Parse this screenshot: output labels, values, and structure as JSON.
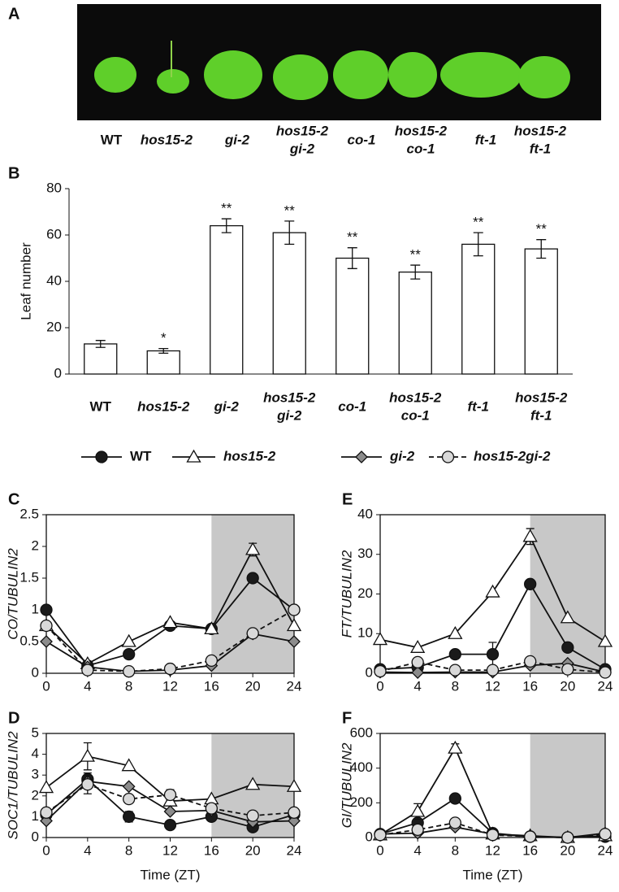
{
  "photo": {
    "panel": "A",
    "labels": [
      [
        "WT"
      ],
      [
        "hos15-2"
      ],
      [
        "gi-2"
      ],
      [
        "hos15-2",
        "gi-2"
      ],
      [
        "co-1"
      ],
      [
        "hos15-2",
        "co-1"
      ],
      [
        "ft-1"
      ],
      [
        "hos15-2",
        "ft-1"
      ]
    ]
  },
  "chart_data": [
    {
      "type": "bar",
      "panel": "B",
      "ylabel": "Leaf number",
      "categories": [
        [
          "WT"
        ],
        [
          "hos15-2"
        ],
        [
          "gi-2"
        ],
        [
          "hos15-2",
          "gi-2"
        ],
        [
          "co-1"
        ],
        [
          "hos15-2",
          "co-1"
        ],
        [
          "ft-1"
        ],
        [
          "hos15-2",
          "ft-1"
        ]
      ],
      "values": [
        13,
        10,
        64,
        61,
        50,
        44,
        56,
        54
      ],
      "errors": [
        1.5,
        1,
        3,
        5,
        4.5,
        3,
        5,
        4
      ],
      "significance": [
        null,
        "*",
        "**",
        "**",
        "**",
        "**",
        "**",
        "**"
      ],
      "color": "#ffffff",
      "ylim": [
        0,
        80
      ],
      "yticks": [
        0,
        20,
        40,
        60,
        80
      ]
    },
    {
      "type": "line",
      "panel": "C",
      "ylabel": "CO/TUBULIN2",
      "x": [
        0,
        4,
        8,
        12,
        16,
        20,
        24
      ],
      "xlim": [
        0,
        24
      ],
      "xticks": [
        0,
        4,
        8,
        12,
        16,
        20,
        24
      ],
      "ylim": [
        0,
        2.5
      ],
      "yticks": [
        0,
        0.5,
        1,
        1.5,
        2,
        2.5
      ],
      "shade": [
        16,
        24
      ],
      "series": [
        {
          "name": "WT",
          "color": "#1a1a1a",
          "marker": "circle",
          "dashed": false,
          "values": [
            1,
            0.12,
            0.3,
            0.75,
            0.7,
            1.5,
            1
          ]
        },
        {
          "name": "hos15-2",
          "color": "#ffffff",
          "marker": "triangle",
          "dashed": false,
          "values": [
            0.75,
            0.15,
            0.5,
            0.8,
            0.7,
            1.95,
            0.75
          ],
          "errors": [
            null,
            null,
            null,
            null,
            null,
            0.1,
            null
          ]
        },
        {
          "name": "gi-2",
          "color": "#8c8c8c",
          "marker": "diamond",
          "dashed": false,
          "values": [
            0.5,
            0.1,
            0.03,
            0.05,
            0.12,
            0.62,
            0.5
          ]
        },
        {
          "name": "hos15-2gi-2",
          "color": "#d9d9d9",
          "marker": "circle",
          "dashed": true,
          "values": [
            0.75,
            0.05,
            0.03,
            0.07,
            0.2,
            0.63,
            1
          ]
        }
      ]
    },
    {
      "type": "line",
      "panel": "E",
      "ylabel": "FT/TUBULIN2",
      "x": [
        0,
        4,
        8,
        12,
        16,
        20,
        24
      ],
      "xlim": [
        0,
        24
      ],
      "xticks": [
        0,
        4,
        8,
        12,
        16,
        20,
        24
      ],
      "ylim": [
        0,
        40
      ],
      "yticks": [
        0,
        10,
        20,
        30,
        40
      ],
      "shade": [
        16,
        24
      ],
      "series": [
        {
          "color": "#1a1a1a",
          "marker": "circle",
          "dashed": false,
          "values": [
            1,
            1.5,
            4.8,
            4.8,
            22.5,
            6.5,
            1
          ],
          "errors": [
            null,
            null,
            null,
            3,
            null,
            null,
            null
          ]
        },
        {
          "color": "#ffffff",
          "marker": "triangle",
          "dashed": false,
          "values": [
            8.5,
            6.5,
            10,
            20.5,
            34.5,
            14,
            8
          ],
          "errors": [
            null,
            null,
            null,
            null,
            2,
            null,
            null
          ]
        },
        {
          "color": "#8c8c8c",
          "marker": "diamond",
          "dashed": false,
          "values": [
            0.3,
            0.2,
            0.3,
            0.3,
            2,
            2.5,
            0.3
          ]
        },
        {
          "color": "#d9d9d9",
          "marker": "circle",
          "dashed": true,
          "values": [
            0.5,
            2.8,
            0.8,
            0.8,
            3,
            1,
            0.2
          ]
        }
      ]
    },
    {
      "type": "line",
      "panel": "D",
      "ylabel": "SOC1/TUBULIN2",
      "xlabel": "Time (ZT)",
      "x": [
        0,
        4,
        8,
        12,
        16,
        20,
        24
      ],
      "xlim": [
        0,
        24
      ],
      "xticks": [
        0,
        4,
        8,
        12,
        16,
        20,
        24
      ],
      "ylim": [
        0,
        5
      ],
      "yticks": [
        0,
        1,
        2,
        3,
        4,
        5
      ],
      "shade": [
        16,
        24
      ],
      "series": [
        {
          "color": "#1a1a1a",
          "marker": "circle",
          "dashed": false,
          "values": [
            1.1,
            2.8,
            1,
            0.6,
            1,
            0.5,
            1.1
          ],
          "errors": [
            null,
            0.3,
            0.25,
            null,
            null,
            null,
            null
          ]
        },
        {
          "color": "#ffffff",
          "marker": "triangle",
          "dashed": false,
          "values": [
            2.4,
            3.9,
            3.45,
            1.75,
            1.85,
            2.55,
            2.45
          ],
          "errors": [
            null,
            0.65,
            null,
            null,
            null,
            null,
            null
          ]
        },
        {
          "color": "#8c8c8c",
          "marker": "diamond",
          "dashed": false,
          "values": [
            0.8,
            2.7,
            2.45,
            1.25,
            1.3,
            0.75,
            0.8
          ]
        },
        {
          "color": "#d9d9d9",
          "marker": "circle",
          "dashed": true,
          "values": [
            1.2,
            2.55,
            1.85,
            2.05,
            1.4,
            1.05,
            1.2
          ],
          "errors": [
            null,
            0.45,
            null,
            0.25,
            null,
            null,
            null
          ]
        }
      ]
    },
    {
      "type": "line",
      "panel": "F",
      "ylabel": "GI/TUBULIN2",
      "xlabel": "Time (ZT)",
      "x": [
        0,
        4,
        8,
        12,
        16,
        20,
        24
      ],
      "xlim": [
        0,
        24
      ],
      "xticks": [
        0,
        4,
        8,
        12,
        16,
        20,
        24
      ],
      "ylim": [
        0,
        600
      ],
      "yticks": [
        0,
        200,
        400,
        600
      ],
      "shade": [
        16,
        24
      ],
      "series": [
        {
          "color": "#1a1a1a",
          "marker": "circle",
          "dashed": false,
          "values": [
            20,
            85,
            225,
            25,
            5,
            0,
            5
          ]
        },
        {
          "color": "#ffffff",
          "marker": "triangle",
          "dashed": false,
          "values": [
            15,
            150,
            515,
            20,
            10,
            0,
            10
          ],
          "errors": [
            null,
            45,
            25,
            null,
            null,
            null,
            null
          ]
        },
        {
          "color": "#8c8c8c",
          "marker": "diamond",
          "dashed": false,
          "values": [
            20,
            25,
            60,
            20,
            5,
            0,
            25
          ]
        },
        {
          "color": "#d9d9d9",
          "marker": "circle",
          "dashed": true,
          "values": [
            15,
            45,
            85,
            15,
            5,
            0,
            20
          ]
        }
      ]
    }
  ]
}
